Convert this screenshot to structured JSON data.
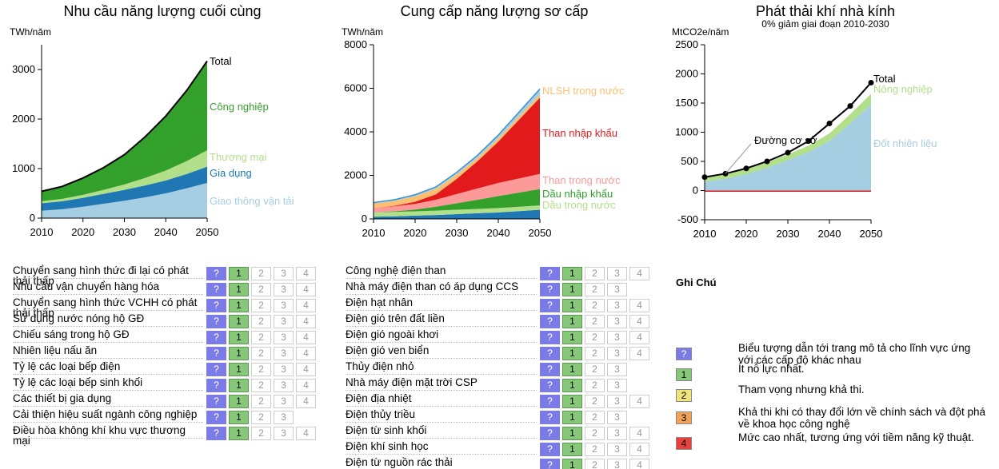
{
  "charts": {
    "final_demand": {
      "title": "Nhu cầu năng lượng cuối cùng",
      "unit": "TWh/năm",
      "x_ticks": [
        "2010",
        "2020",
        "2030",
        "2040",
        "2050"
      ],
      "y_ticks": [
        "0",
        "1000",
        "2000",
        "3000"
      ],
      "labels": {
        "total": "Total",
        "industry": "Công nghiệp",
        "commercial": "Thương mại",
        "residential": "Gia dụng",
        "transport": "Giao thông vận tải"
      }
    },
    "primary_supply": {
      "title": "Cung cấp năng lượng sơ cấp",
      "unit": "TWh/năm",
      "x_ticks": [
        "2010",
        "2020",
        "2030",
        "2040",
        "2050"
      ],
      "y_ticks": [
        "0",
        "2000",
        "4000",
        "6000",
        "8000"
      ],
      "labels": {
        "nlsh": "NLSH trong nước",
        "coal_import": "Than nhập khẩu",
        "coal_domestic": "Than trong nước",
        "oil_import": "Dầu nhập khẩu",
        "oil_domestic": "Dầu trong nước"
      }
    },
    "ghg": {
      "title": "Phát thải khí nhà kính",
      "subtitle": "0% giảm giai đoạn 2010-2030",
      "unit": "MtCO2e/năm",
      "x_ticks": [
        "2010",
        "2020",
        "2030",
        "2040",
        "2050"
      ],
      "y_ticks": [
        "-500",
        "0",
        "500",
        "1000",
        "1500",
        "2000",
        "2500"
      ],
      "labels": {
        "total": "Total",
        "agri": "Nông nghiệp",
        "fuel": "Đốt nhiên liệu",
        "baseline": "Đường cơ sở"
      }
    }
  },
  "chart_data": [
    {
      "type": "area",
      "title": "Nhu cầu năng lượng cuối cùng",
      "ylabel": "TWh/năm",
      "x": [
        2010,
        2015,
        2020,
        2025,
        2030,
        2035,
        2040,
        2045,
        2050
      ],
      "ylim": [
        0,
        3500
      ],
      "series": [
        {
          "name": "Giao thông vận tải",
          "values": [
            150,
            180,
            230,
            290,
            350,
            420,
            500,
            600,
            710
          ]
        },
        {
          "name": "Gia dụng",
          "values": [
            150,
            160,
            180,
            200,
            220,
            240,
            260,
            290,
            330
          ]
        },
        {
          "name": "Thương mại",
          "values": [
            40,
            50,
            60,
            80,
            110,
            150,
            200,
            260,
            330
          ]
        },
        {
          "name": "Công nghiệp",
          "values": [
            200,
            250,
            340,
            450,
            600,
            830,
            1100,
            1420,
            1800
          ]
        }
      ],
      "total": {
        "name": "Total",
        "values": [
          540,
          640,
          810,
          1020,
          1280,
          1640,
          2060,
          2570,
          3170
        ]
      },
      "colors": [
        "#a6cee3",
        "#1f78b4",
        "#b2df8a",
        "#33a02c"
      ]
    },
    {
      "type": "area",
      "title": "Cung cấp năng lượng sơ cấp",
      "ylabel": "TWh/năm",
      "x": [
        2010,
        2015,
        2020,
        2025,
        2030,
        2035,
        2040,
        2045,
        2050
      ],
      "ylim": [
        0,
        8000
      ],
      "series": [
        {
          "name": "",
          "values": [
            100,
            120,
            150,
            180,
            220,
            260,
            300,
            360,
            420
          ]
        },
        {
          "name": "Dầu trong nước",
          "values": [
            200,
            200,
            200,
            200,
            200,
            200,
            200,
            200,
            200
          ]
        },
        {
          "name": "Dầu nhập khẩu",
          "values": [
            0,
            30,
            80,
            180,
            300,
            420,
            550,
            650,
            750
          ]
        },
        {
          "name": "Than trong nước",
          "values": [
            200,
            230,
            260,
            320,
            420,
            520,
            600,
            650,
            700
          ]
        },
        {
          "name": "Than nhập khẩu",
          "values": [
            0,
            20,
            100,
            250,
            700,
            1250,
            1900,
            2700,
            3500
          ]
        },
        {
          "name": "NLSH trong nước",
          "values": [
            200,
            220,
            250,
            250,
            200,
            150,
            150,
            150,
            150
          ]
        },
        {
          "name": "",
          "values": [
            50,
            60,
            70,
            90,
            100,
            120,
            150,
            200,
            250
          ]
        }
      ],
      "colors": [
        "#1f78b4",
        "#b2df8a",
        "#33a02c",
        "#fb9a99",
        "#e31a1c",
        "#fdbf6f",
        "#a6cee3"
      ]
    },
    {
      "type": "area",
      "title": "Phát thải khí nhà kính",
      "subtitle": "0% giảm giai đoạn 2010-2030",
      "ylabel": "MtCO2e/năm",
      "x": [
        2010,
        2015,
        2020,
        2025,
        2030,
        2035,
        2040,
        2045,
        2050
      ],
      "ylim": [
        -500,
        2500
      ],
      "series": [
        {
          "name": "Đốt nhiên liệu",
          "values": [
            150,
            200,
            280,
            390,
            520,
            660,
            850,
            1150,
            1480
          ]
        },
        {
          "name": "Nông nghiệp",
          "values": [
            80,
            85,
            90,
            95,
            100,
            110,
            130,
            160,
            180
          ]
        }
      ],
      "negative": {
        "values": [
          -20,
          -20,
          -20,
          -20,
          -20,
          -20,
          -20,
          -20,
          -20
        ]
      },
      "total": {
        "name": "Total",
        "values": [
          230,
          290,
          380,
          500,
          650,
          850,
          1150,
          1450,
          1850
        ]
      },
      "markers_x": [
        2010,
        2015,
        2020,
        2025,
        2030,
        2035,
        2040,
        2045,
        2050
      ],
      "colors": [
        "#a6cee3",
        "#b2df8a",
        "#e31a1c"
      ]
    }
  ],
  "levers_left": [
    {
      "name": "Chuyển sang hình thức đi lại có phát thải thấp",
      "levels": 4
    },
    {
      "name": "Nhu cầu vận chuyển hàng hóa",
      "levels": 4
    },
    {
      "name": "Chuyển sang hình thức VCHH có phát thải thấp",
      "levels": 4
    },
    {
      "name": "Sử dụng nước nóng hộ GĐ",
      "levels": 4
    },
    {
      "name": "Chiếu sáng trong hộ GĐ",
      "levels": 4
    },
    {
      "name": "Nhiên liệu nấu ăn",
      "levels": 4
    },
    {
      "name": "Tỷ lệ các loại bếp điện",
      "levels": 4
    },
    {
      "name": "Tỷ lệ các loại bếp sinh khối",
      "levels": 4
    },
    {
      "name": "Các thiết bị gia dụng",
      "levels": 4
    },
    {
      "name": "Cải thiện hiệu suất ngành công nghiệp",
      "levels": 3
    },
    {
      "name": "Điều hòa không khí khu vực thương mại",
      "levels": 4
    }
  ],
  "levers_mid": [
    {
      "name": "Công nghệ điện than",
      "levels": 4
    },
    {
      "name": "Nhà máy điện than có áp dụng CCS",
      "levels": 3
    },
    {
      "name": "Điện hạt nhân",
      "levels": 4
    },
    {
      "name": "Điện gió trên đất liền",
      "levels": 4
    },
    {
      "name": "Điện gió ngoài khơi",
      "levels": 4
    },
    {
      "name": "Điện gió ven biển",
      "levels": 4
    },
    {
      "name": "Thủy điện nhỏ",
      "levels": 3
    },
    {
      "name": "Nhà máy điện mặt trời CSP",
      "levels": 3
    },
    {
      "name": "Điện địa nhiệt",
      "levels": 4
    },
    {
      "name": "Điện thủy triều",
      "levels": 3
    },
    {
      "name": "Điện từ sinh khối",
      "levels": 4
    },
    {
      "name": "Điện khí sinh học",
      "levels": 4
    },
    {
      "name": "Điện từ nguồn rác thải",
      "levels": 4
    }
  ],
  "buttons": {
    "help": "?",
    "l1": "1",
    "l2": "2",
    "l3": "3",
    "l4": "4"
  },
  "legend": {
    "title": "Ghi Chú",
    "items": [
      {
        "swatch": "?",
        "color": "#7b7be8",
        "text": "Biểu tượng dẫn tới trang mô tả cho lĩnh vực ứng với các cấp độ khác nhau"
      },
      {
        "swatch": "1",
        "color": "#86c77a",
        "text": "Ít nỗ lực nhất."
      },
      {
        "swatch": "2",
        "color": "#efe37a",
        "text": "Tham vọng nhưng khả thi."
      },
      {
        "swatch": "3",
        "color": "#f3a25a",
        "text": "Khả thi khi có thay đổi lớn về chính sách và đột phá về khoa học công nghệ"
      },
      {
        "swatch": "4",
        "color": "#e8403a",
        "text": "Mức cao nhất, tương ứng với tiềm năng kỹ thuật."
      }
    ]
  }
}
